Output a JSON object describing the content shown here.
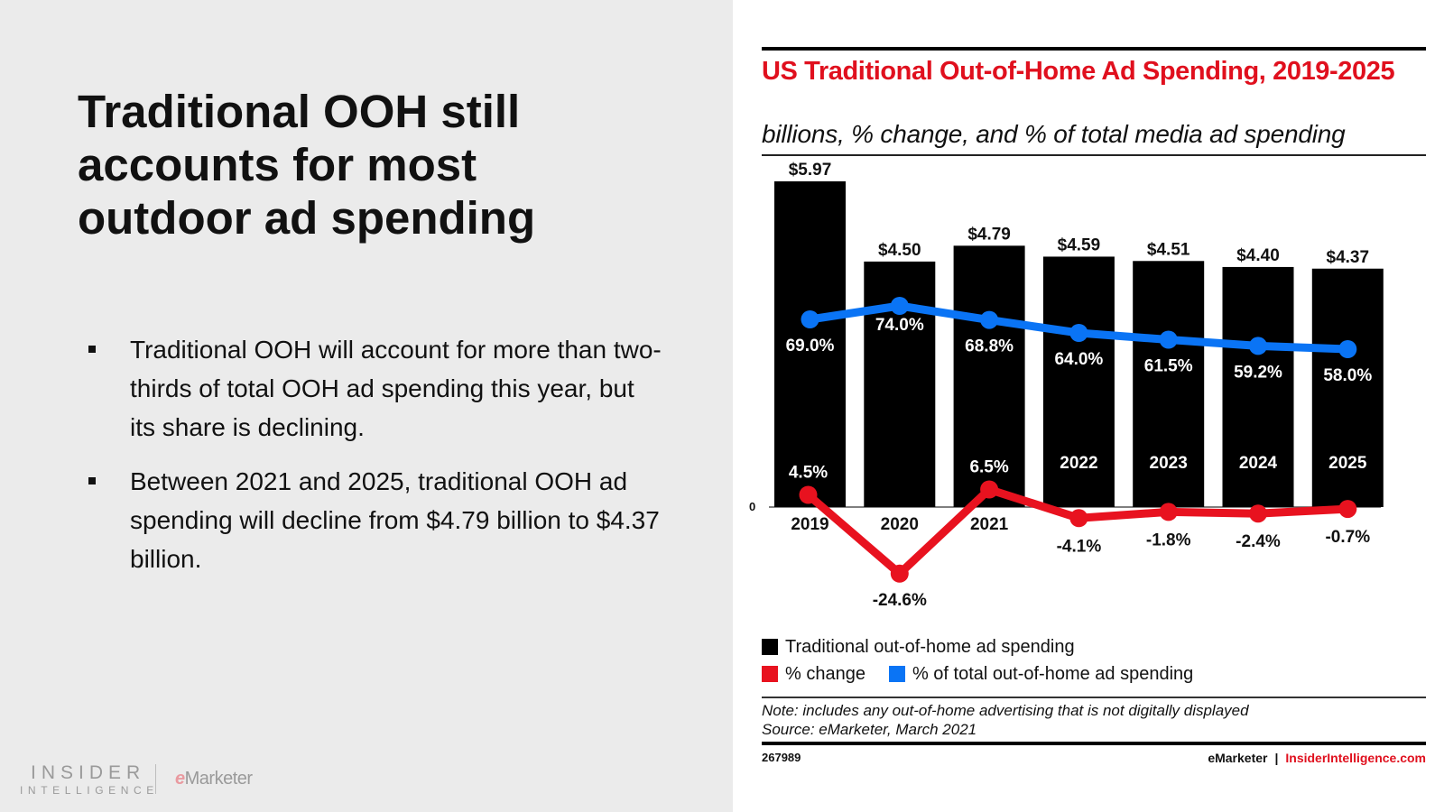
{
  "slide": {
    "title": "Traditional OOH still accounts for most outdoor ad spending",
    "bullets": [
      "Traditional OOH will account for more than two-thirds of total OOH ad spending this year, but its share is declining.",
      "Between 2021 and 2025, traditional OOH ad spending will decline from $4.79 billion to $4.37 billion."
    ],
    "logos": {
      "insider_line1": "INSIDER",
      "insider_line2": "INTELLIGENCE",
      "emarketer_e": "e",
      "emarketer_rest": "Marketer"
    }
  },
  "chart_data": {
    "type": "bar",
    "title": "US Traditional Out-of-Home Ad Spending, 2019-2025",
    "subtitle": "billions, % change, and % of total media ad spending",
    "categories": [
      "2019",
      "2020",
      "2021",
      "2022",
      "2023",
      "2024",
      "2025"
    ],
    "series": [
      {
        "name": "Traditional out-of-home ad spending",
        "type": "bar",
        "color": "#000000",
        "values": [
          5.97,
          4.5,
          4.79,
          4.59,
          4.51,
          4.4,
          4.37
        ],
        "labels": [
          "$5.97",
          "$4.50",
          "$4.79",
          "$4.59",
          "$4.51",
          "$4.40",
          "$4.37"
        ]
      },
      {
        "name": "% change",
        "type": "line",
        "color": "#e8121f",
        "values": [
          4.5,
          -24.6,
          6.5,
          -4.1,
          -1.8,
          -2.4,
          -0.7
        ],
        "labels": [
          "4.5%",
          "-24.6%",
          "6.5%",
          "-4.1%",
          "-1.8%",
          "-2.4%",
          "-0.7%"
        ]
      },
      {
        "name": "% of total out-of-home ad spending",
        "type": "line",
        "color": "#0a74f5",
        "values": [
          69.0,
          74.0,
          68.8,
          64.0,
          61.5,
          59.2,
          58.0
        ],
        "labels": [
          "69.0%",
          "74.0%",
          "68.8%",
          "64.0%",
          "61.5%",
          "59.2%",
          "58.0%"
        ]
      }
    ],
    "zero_label": "0",
    "legend_position": "bottom-left",
    "grid": false,
    "note": "Note: includes any out-of-home advertising that is not digitally displayed",
    "source": "Source: eMarketer, March 2021",
    "chart_id": "267989",
    "footer_brand": "eMarketer",
    "footer_site": "InsiderIntelligence.com"
  }
}
